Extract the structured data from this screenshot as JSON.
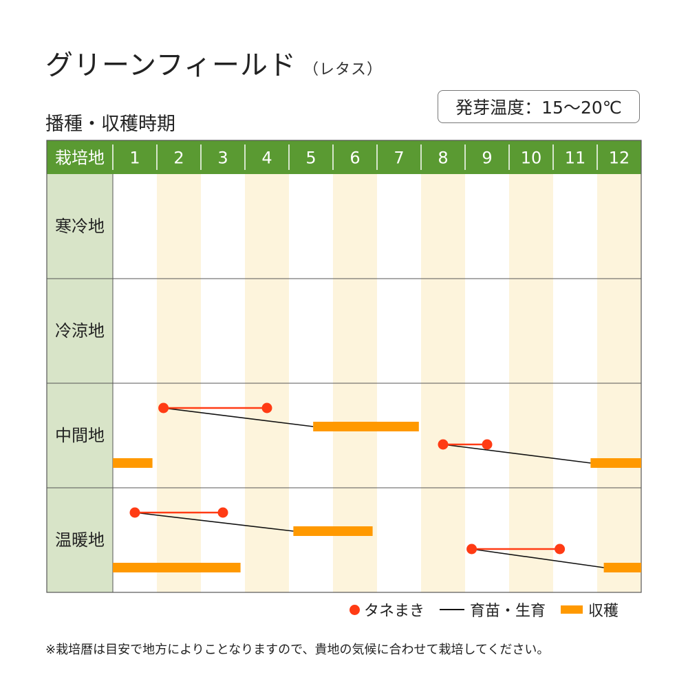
{
  "title": "グリーンフィールド",
  "subtitle": "（レタス）",
  "section_title": "播種・収穫時期",
  "germination_temp": "発芽温度：15～20℃",
  "colors": {
    "header_green": "#5a9a32",
    "region_bg": "#d8e4c8",
    "stripe": "#fdf4dc",
    "sowing": "#ff3b14",
    "harvest": "#ff9900",
    "nursery": "#111111"
  },
  "chart_data": {
    "type": "gantt",
    "header_label": "栽培地",
    "months": [
      "1",
      "2",
      "3",
      "4",
      "5",
      "6",
      "7",
      "8",
      "9",
      "10",
      "11",
      "12"
    ],
    "regions": [
      {
        "name": "寒冷地",
        "schedules": []
      },
      {
        "name": "冷涼地",
        "schedules": []
      },
      {
        "name": "中間地",
        "schedules": [
          {
            "sowing": [
              2.15,
              4.5
            ],
            "nursery_to": 5.55,
            "harvest": [
              5.55,
              7.95
            ]
          },
          {
            "sowing": [
              8.5,
              9.5
            ],
            "nursery_to": 11.85,
            "harvest": [
              11.85,
              13.0
            ],
            "harvest_prev": [
              1.0,
              1.9
            ]
          }
        ]
      },
      {
        "name": "温暖地",
        "schedules": [
          {
            "sowing": [
              1.5,
              3.5
            ],
            "nursery_to": 5.1,
            "harvest": [
              5.1,
              6.9
            ]
          },
          {
            "sowing": [
              9.15,
              11.15
            ],
            "nursery_to": 12.15,
            "harvest": [
              12.15,
              13.0
            ],
            "harvest_prev": [
              1.0,
              3.9
            ]
          }
        ]
      }
    ]
  },
  "legend": {
    "sowing": "タネまき",
    "nursery": "育苗・生育",
    "harvest": "収穫"
  },
  "note": "※栽培暦は目安で地方によりことなりますので、貴地の気候に合わせて栽培してください。"
}
